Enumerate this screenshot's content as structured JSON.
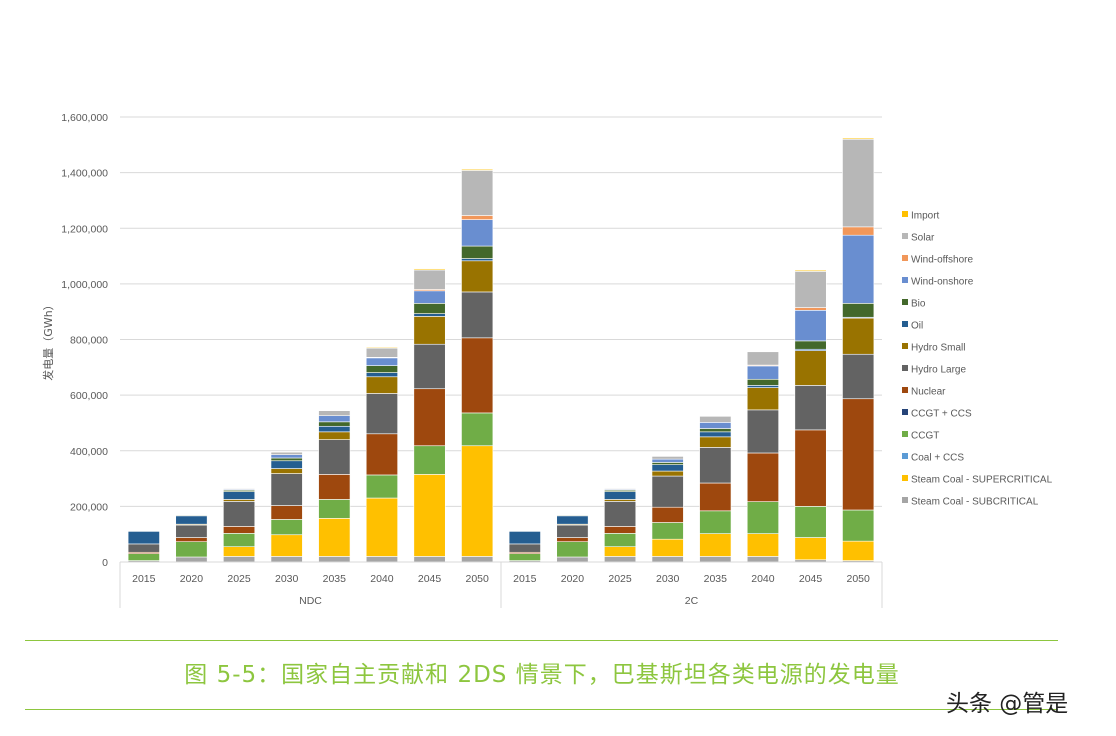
{
  "chart_data": {
    "type": "stacked-bar",
    "title": "",
    "ylabel": "发电量（GWh）",
    "ylim": [
      0,
      1600000
    ],
    "yticks": [
      "0",
      "200,000",
      "400,000",
      "600,000",
      "800,000",
      "1,000,000",
      "1,200,000",
      "1,400,000",
      "1,600,000"
    ],
    "grid": true,
    "legend_position": "right",
    "groups": [
      {
        "name": "NDC",
        "categories": [
          "2015",
          "2020",
          "2025",
          "2030",
          "2035",
          "2040",
          "2045",
          "2050"
        ]
      },
      {
        "name": "2C",
        "categories": [
          "2015",
          "2020",
          "2025",
          "2030",
          "2035",
          "2040",
          "2045",
          "2050"
        ]
      }
    ],
    "series": [
      {
        "name": "Steam Coal - SUBCRITICAL",
        "color": "#a5a5a5",
        "values": [
          5000,
          18000,
          20000,
          20000,
          20000,
          20000,
          20000,
          20000,
          5000,
          18000,
          20000,
          20000,
          20000,
          20000,
          8000,
          5000
        ]
      },
      {
        "name": "Steam Coal - SUPERCRITICAL",
        "color": "#ffc000",
        "values": [
          0,
          0,
          35000,
          78000,
          137000,
          210000,
          295000,
          398000,
          0,
          0,
          35000,
          62000,
          82000,
          82000,
          80000,
          70000
        ]
      },
      {
        "name": "Coal + CCS",
        "color": "#5b9bd5",
        "values": [
          0,
          0,
          0,
          0,
          0,
          0,
          0,
          0,
          0,
          0,
          0,
          0,
          0,
          0,
          0,
          0
        ]
      },
      {
        "name": "CCGT",
        "color": "#70ad47",
        "values": [
          25000,
          55000,
          48000,
          55000,
          68000,
          83000,
          103000,
          118000,
          25000,
          55000,
          48000,
          60000,
          82000,
          115000,
          112000,
          112000
        ]
      },
      {
        "name": "CCGT + CCS",
        "color": "#264478",
        "values": [
          0,
          0,
          0,
          0,
          0,
          0,
          0,
          0,
          0,
          0,
          0,
          0,
          0,
          0,
          0,
          0
        ]
      },
      {
        "name": "Nuclear",
        "color": "#9e480e",
        "values": [
          5000,
          15000,
          25000,
          50000,
          90000,
          148000,
          205000,
          270000,
          5000,
          15000,
          25000,
          55000,
          100000,
          175000,
          275000,
          400000
        ]
      },
      {
        "name": "Hydro Large",
        "color": "#636363",
        "values": [
          30000,
          45000,
          90000,
          115000,
          125000,
          145000,
          160000,
          165000,
          30000,
          45000,
          90000,
          112000,
          128000,
          155000,
          160000,
          160000
        ]
      },
      {
        "name": "Hydro Small",
        "color": "#997300",
        "values": [
          0,
          3000,
          7000,
          18000,
          28000,
          60000,
          100000,
          112000,
          0,
          3000,
          7000,
          18000,
          38000,
          80000,
          125000,
          130000
        ]
      },
      {
        "name": "Oil",
        "color": "#255e91",
        "values": [
          45000,
          30000,
          28000,
          28000,
          20000,
          15000,
          10000,
          8000,
          45000,
          30000,
          28000,
          23000,
          18000,
          8000,
          5000,
          3000
        ]
      },
      {
        "name": "Bio",
        "color": "#43682b",
        "values": [
          0,
          3000,
          5000,
          10000,
          16000,
          25000,
          37000,
          45000,
          0,
          3000,
          5000,
          8000,
          12000,
          22000,
          30000,
          50000
        ]
      },
      {
        "name": "Wind-onshore",
        "color": "#698ed0",
        "values": [
          0,
          2000,
          3000,
          12000,
          22000,
          28000,
          45000,
          95000,
          0,
          2000,
          3000,
          12000,
          22000,
          48000,
          110000,
          245000
        ]
      },
      {
        "name": "Wind-offshore",
        "color": "#f1975a",
        "values": [
          0,
          0,
          0,
          0,
          0,
          2000,
          5000,
          15000,
          0,
          0,
          0,
          0,
          0,
          3000,
          10000,
          30000
        ]
      },
      {
        "name": "Solar",
        "color": "#b7b7b7",
        "values": [
          0,
          2000,
          3000,
          9000,
          18000,
          33000,
          70000,
          162000,
          0,
          2000,
          3000,
          10000,
          22000,
          48000,
          130000,
          315000
        ]
      },
      {
        "name": "Import",
        "color": "#ffc000",
        "values": [
          0,
          0,
          0,
          2000,
          2000,
          3000,
          4000,
          4000,
          0,
          0,
          0,
          2000,
          2000,
          2000,
          4000,
          4000
        ]
      }
    ]
  },
  "caption": "图 5-5：国家自主贡献和 2DS 情景下，巴基斯坦各类电源的发电量",
  "watermark": "头条 @管是"
}
